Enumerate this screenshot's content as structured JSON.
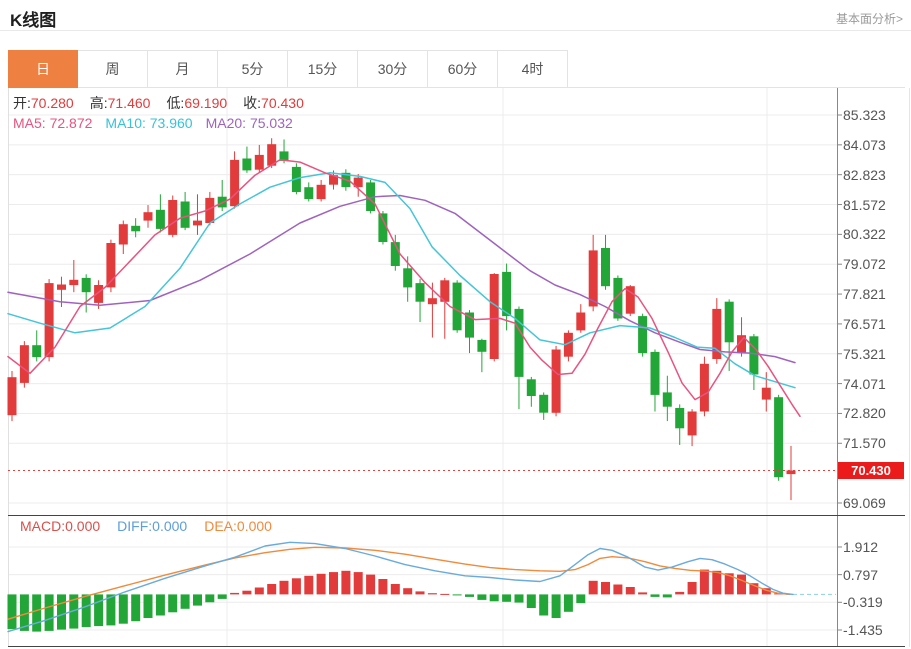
{
  "header": {
    "title": "K线图",
    "link": "基本面分析>"
  },
  "tabs": {
    "active_index": 0,
    "items": [
      {
        "id": "day",
        "label": "日"
      },
      {
        "id": "week",
        "label": "周"
      },
      {
        "id": "month",
        "label": "月"
      },
      {
        "id": "5min",
        "label": "5分"
      },
      {
        "id": "15min",
        "label": "15分"
      },
      {
        "id": "30min",
        "label": "30分"
      },
      {
        "id": "60min",
        "label": "60分"
      },
      {
        "id": "4hour",
        "label": "4时"
      }
    ]
  },
  "quote": {
    "open_label": "开:",
    "open": "70.280",
    "high_label": "高:",
    "high": "71.460",
    "low_label": "低:",
    "low": "69.190",
    "close_label": "收:",
    "close": "70.430"
  },
  "ma": {
    "ma5_label": "MA5:",
    "ma5": "72.872",
    "ma10_label": "MA10:",
    "ma10": "73.960",
    "ma20_label": "MA20:",
    "ma20": "75.032"
  },
  "macd_header": {
    "macd_label": "MACD:",
    "macd": "0.000",
    "diff_label": "DIFF:",
    "diff": "0.000",
    "dea_label": "DEA:",
    "dea": "0.000"
  },
  "colors": {
    "up": "#e23b3b",
    "down": "#23a638",
    "ma5": "#e8537f",
    "ma10": "#45c5d8",
    "ma20": "#9f63bd",
    "diff": "#6aabdc",
    "dea": "#f08a3c",
    "tab_active": "#ee8041",
    "price_tag": "#ec1b1b",
    "grid": "#ececec",
    "axis": "#888888",
    "frame": "#444444",
    "dashed_zero": "#8fd0dc",
    "current_line": "#e34040"
  },
  "chart_data": {
    "type": "candlestick+macd",
    "main": {
      "y_axis_labels": [
        85.323,
        84.073,
        82.823,
        81.572,
        80.322,
        79.072,
        77.821,
        76.571,
        75.321,
        74.071,
        72.82,
        71.57,
        69.069
      ],
      "current_price": 70.43,
      "candles": [
        [
          72.75,
          74.6,
          72.5,
          74.34
        ],
        [
          74.1,
          75.85,
          73.9,
          75.68
        ],
        [
          75.68,
          76.3,
          75.0,
          75.18
        ],
        [
          75.18,
          78.45,
          75.0,
          78.28
        ],
        [
          78.0,
          78.55,
          77.28,
          78.22
        ],
        [
          78.2,
          79.25,
          77.9,
          78.42
        ],
        [
          78.5,
          78.65,
          77.05,
          77.9
        ],
        [
          77.45,
          78.4,
          77.2,
          78.2
        ],
        [
          78.1,
          80.1,
          77.9,
          79.96
        ],
        [
          79.9,
          80.9,
          79.5,
          80.75
        ],
        [
          80.68,
          81.0,
          80.2,
          80.45
        ],
        [
          80.9,
          81.55,
          80.6,
          81.25
        ],
        [
          81.35,
          82.0,
          80.4,
          80.55
        ],
        [
          80.3,
          81.95,
          80.2,
          81.76
        ],
        [
          81.7,
          82.1,
          80.5,
          80.6
        ],
        [
          80.7,
          82.0,
          80.3,
          80.9
        ],
        [
          80.8,
          82.1,
          80.7,
          81.85
        ],
        [
          81.9,
          82.6,
          81.3,
          81.45
        ],
        [
          81.5,
          83.8,
          81.4,
          83.44
        ],
        [
          83.5,
          84.0,
          82.9,
          83.0
        ],
        [
          83.03,
          84.07,
          82.9,
          83.65
        ],
        [
          83.2,
          84.35,
          83.1,
          84.1
        ],
        [
          83.8,
          84.3,
          83.3,
          83.4
        ],
        [
          83.15,
          83.3,
          82.0,
          82.1
        ],
        [
          82.3,
          82.5,
          81.7,
          81.8
        ],
        [
          81.8,
          82.6,
          81.7,
          82.4
        ],
        [
          82.4,
          83.0,
          82.2,
          82.8
        ],
        [
          82.9,
          83.05,
          82.15,
          82.3
        ],
        [
          82.3,
          82.85,
          81.9,
          82.7
        ],
        [
          82.5,
          82.6,
          81.2,
          81.3
        ],
        [
          81.2,
          81.3,
          79.9,
          80.0
        ],
        [
          80.0,
          80.3,
          78.8,
          79.0
        ],
        [
          78.9,
          79.4,
          77.5,
          78.1
        ],
        [
          78.28,
          78.45,
          76.65,
          77.5
        ],
        [
          77.4,
          78.3,
          76.0,
          77.65
        ],
        [
          77.5,
          78.5,
          75.95,
          78.4
        ],
        [
          78.3,
          78.4,
          76.2,
          76.3
        ],
        [
          77.05,
          77.15,
          75.35,
          76.0
        ],
        [
          75.9,
          75.95,
          74.55,
          75.4
        ],
        [
          75.1,
          78.7,
          75.0,
          78.66
        ],
        [
          78.75,
          79.1,
          76.3,
          76.9
        ],
        [
          77.2,
          77.3,
          73.0,
          74.35
        ],
        [
          74.25,
          74.35,
          73.1,
          73.55
        ],
        [
          73.6,
          73.7,
          72.55,
          72.85
        ],
        [
          72.85,
          75.65,
          72.7,
          75.5
        ],
        [
          75.2,
          76.3,
          75.0,
          76.2
        ],
        [
          76.3,
          77.4,
          76.2,
          77.05
        ],
        [
          77.3,
          80.3,
          77.1,
          79.65
        ],
        [
          79.75,
          80.3,
          78.0,
          78.15
        ],
        [
          78.5,
          78.6,
          76.7,
          76.8
        ],
        [
          77.0,
          78.2,
          76.9,
          78.15
        ],
        [
          76.9,
          77.0,
          75.2,
          75.35
        ],
        [
          75.4,
          75.5,
          72.9,
          73.6
        ],
        [
          73.7,
          74.4,
          72.5,
          73.1
        ],
        [
          73.05,
          73.2,
          71.5,
          72.2
        ],
        [
          71.9,
          73.0,
          71.45,
          72.9
        ],
        [
          72.9,
          75.2,
          72.7,
          74.9
        ],
        [
          75.1,
          77.65,
          74.9,
          77.2
        ],
        [
          77.5,
          77.6,
          74.6,
          75.8
        ],
        [
          75.35,
          76.85,
          75.2,
          76.1
        ],
        [
          76.05,
          76.15,
          73.8,
          74.45
        ],
        [
          73.4,
          74.55,
          72.9,
          73.9
        ],
        [
          73.5,
          73.6,
          70.0,
          70.15
        ],
        [
          70.28,
          71.46,
          69.19,
          70.43
        ]
      ],
      "ma5_line": [
        [
          8,
          75.2
        ],
        [
          30,
          74.5
        ],
        [
          55,
          75.6
        ],
        [
          80,
          77.3
        ],
        [
          105,
          78.1
        ],
        [
          130,
          79.2
        ],
        [
          155,
          80.3
        ],
        [
          180,
          81.0
        ],
        [
          205,
          81.3
        ],
        [
          230,
          81.8
        ],
        [
          255,
          82.8
        ],
        [
          280,
          83.45
        ],
        [
          300,
          83.35
        ],
        [
          325,
          82.9
        ],
        [
          350,
          82.55
        ],
        [
          375,
          81.6
        ],
        [
          400,
          79.5
        ],
        [
          425,
          78.3
        ],
        [
          450,
          77.3
        ],
        [
          475,
          76.75
        ],
        [
          500,
          76.8
        ],
        [
          515,
          76.6
        ],
        [
          530,
          75.6
        ],
        [
          542,
          75.05
        ],
        [
          558,
          74.45
        ],
        [
          572,
          74.5
        ],
        [
          585,
          75.3
        ],
        [
          598,
          76.4
        ],
        [
          612,
          77.5
        ],
        [
          625,
          78.05
        ],
        [
          638,
          77.7
        ],
        [
          652,
          76.8
        ],
        [
          668,
          75.4
        ],
        [
          682,
          74.1
        ],
        [
          695,
          73.4
        ],
        [
          708,
          73.7
        ],
        [
          720,
          74.5
        ],
        [
          732,
          75.4
        ],
        [
          744,
          76.0
        ],
        [
          756,
          75.5
        ],
        [
          768,
          74.8
        ],
        [
          780,
          74.0
        ],
        [
          792,
          73.2
        ],
        [
          800,
          72.7
        ]
      ],
      "ma10_line": [
        [
          8,
          77.0
        ],
        [
          40,
          76.6
        ],
        [
          75,
          76.2
        ],
        [
          110,
          76.4
        ],
        [
          145,
          77.3
        ],
        [
          180,
          78.9
        ],
        [
          210,
          80.8
        ],
        [
          240,
          81.6
        ],
        [
          270,
          82.3
        ],
        [
          300,
          82.7
        ],
        [
          330,
          82.9
        ],
        [
          360,
          82.75
        ],
        [
          385,
          82.5
        ],
        [
          410,
          81.4
        ],
        [
          432,
          79.8
        ],
        [
          460,
          78.6
        ],
        [
          490,
          77.5
        ],
        [
          515,
          76.8
        ],
        [
          540,
          75.9
        ],
        [
          565,
          75.7
        ],
        [
          590,
          76.2
        ],
        [
          620,
          76.5
        ],
        [
          650,
          76.4
        ],
        [
          675,
          76.0
        ],
        [
          697,
          75.6
        ],
        [
          715,
          75.55
        ],
        [
          735,
          74.9
        ],
        [
          755,
          74.4
        ],
        [
          775,
          74.15
        ],
        [
          795,
          73.9
        ]
      ],
      "ma20_line": [
        [
          8,
          77.9
        ],
        [
          60,
          77.5
        ],
        [
          100,
          77.35
        ],
        [
          150,
          77.55
        ],
        [
          200,
          78.4
        ],
        [
          250,
          79.5
        ],
        [
          300,
          80.8
        ],
        [
          340,
          81.5
        ],
        [
          375,
          81.9
        ],
        [
          400,
          81.95
        ],
        [
          425,
          81.75
        ],
        [
          455,
          81.2
        ],
        [
          480,
          80.4
        ],
        [
          505,
          79.6
        ],
        [
          530,
          78.8
        ],
        [
          555,
          78.2
        ],
        [
          580,
          77.8
        ],
        [
          605,
          77.3
        ],
        [
          630,
          76.7
        ],
        [
          655,
          76.2
        ],
        [
          680,
          75.8
        ],
        [
          700,
          75.5
        ],
        [
          725,
          75.4
        ],
        [
          750,
          75.35
        ],
        [
          775,
          75.2
        ],
        [
          795,
          74.95
        ]
      ]
    },
    "macd": {
      "y_axis_labels": [
        1.912,
        0.797,
        -0.319,
        -1.435
      ],
      "histogram": [
        -1.4,
        -1.47,
        -1.5,
        -1.47,
        -1.42,
        -1.38,
        -1.32,
        -1.28,
        -1.25,
        -1.18,
        -1.08,
        -0.95,
        -0.85,
        -0.72,
        -0.58,
        -0.45,
        -0.32,
        -0.18,
        0.06,
        0.15,
        0.28,
        0.42,
        0.55,
        0.65,
        0.75,
        0.83,
        0.9,
        0.95,
        0.9,
        0.8,
        0.62,
        0.42,
        0.25,
        0.12,
        0.05,
        0.02,
        -0.04,
        -0.1,
        -0.22,
        -0.28,
        -0.3,
        -0.33,
        -0.55,
        -0.85,
        -0.95,
        -0.7,
        -0.35,
        0.55,
        0.5,
        0.4,
        0.3,
        0.08,
        -0.1,
        -0.12,
        0.1,
        0.5,
        1.0,
        0.95,
        0.85,
        0.8,
        0.45,
        0.25,
        0.04,
        0.0
      ],
      "diff_line": [
        [
          8,
          -1.5
        ],
        [
          45,
          -1.05
        ],
        [
          85,
          -0.5
        ],
        [
          125,
          0.1
        ],
        [
          165,
          0.65
        ],
        [
          205,
          1.15
        ],
        [
          235,
          1.5
        ],
        [
          265,
          1.95
        ],
        [
          290,
          2.1
        ],
        [
          315,
          2.05
        ],
        [
          345,
          1.85
        ],
        [
          375,
          1.55
        ],
        [
          405,
          1.2
        ],
        [
          435,
          0.95
        ],
        [
          465,
          0.75
        ],
        [
          490,
          0.68
        ],
        [
          515,
          0.58
        ],
        [
          540,
          0.52
        ],
        [
          560,
          0.75
        ],
        [
          575,
          1.2
        ],
        [
          588,
          1.6
        ],
        [
          600,
          1.85
        ],
        [
          612,
          1.78
        ],
        [
          628,
          1.5
        ],
        [
          645,
          1.1
        ],
        [
          658,
          0.98
        ],
        [
          672,
          1.1
        ],
        [
          688,
          1.32
        ],
        [
          700,
          1.45
        ],
        [
          712,
          1.4
        ],
        [
          725,
          1.22
        ],
        [
          738,
          1.0
        ],
        [
          750,
          0.75
        ],
        [
          762,
          0.45
        ],
        [
          773,
          0.2
        ],
        [
          783,
          0.05
        ],
        [
          793,
          0.0
        ]
      ],
      "dea_line": [
        [
          8,
          -1.0
        ],
        [
          45,
          -0.55
        ],
        [
          85,
          -0.08
        ],
        [
          125,
          0.35
        ],
        [
          165,
          0.78
        ],
        [
          205,
          1.18
        ],
        [
          235,
          1.47
        ],
        [
          265,
          1.68
        ],
        [
          290,
          1.82
        ],
        [
          315,
          1.9
        ],
        [
          345,
          1.87
        ],
        [
          375,
          1.78
        ],
        [
          405,
          1.62
        ],
        [
          435,
          1.42
        ],
        [
          465,
          1.22
        ],
        [
          490,
          1.08
        ],
        [
          515,
          1.0
        ],
        [
          540,
          0.95
        ],
        [
          560,
          0.93
        ],
        [
          575,
          1.0
        ],
        [
          588,
          1.2
        ],
        [
          600,
          1.45
        ],
        [
          612,
          1.52
        ],
        [
          628,
          1.47
        ],
        [
          645,
          1.32
        ],
        [
          660,
          1.15
        ],
        [
          675,
          1.05
        ],
        [
          690,
          0.97
        ],
        [
          705,
          0.94
        ],
        [
          718,
          0.88
        ],
        [
          730,
          0.75
        ],
        [
          742,
          0.56
        ],
        [
          754,
          0.36
        ],
        [
          766,
          0.17
        ],
        [
          778,
          0.05
        ],
        [
          790,
          0.0
        ]
      ]
    }
  }
}
